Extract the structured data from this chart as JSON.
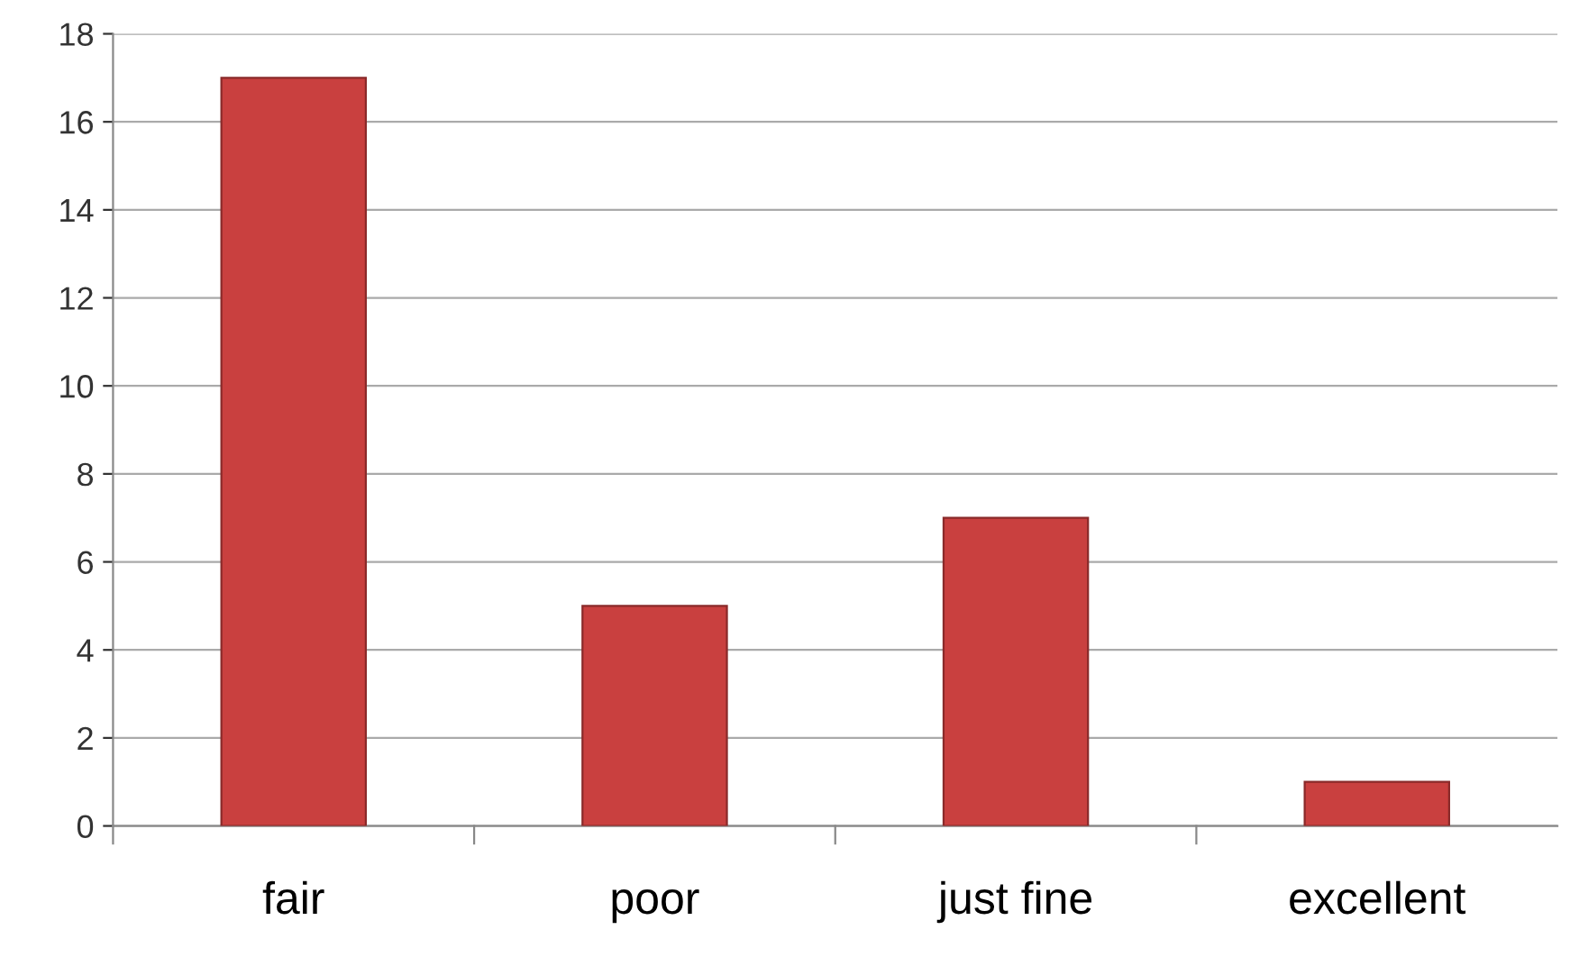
{
  "chart_data": {
    "type": "bar",
    "categories": [
      "fair",
      "poor",
      "just fine",
      "excellent"
    ],
    "values": [
      17,
      5,
      7,
      1
    ],
    "color": "#c9403f",
    "ylim": [
      0,
      18
    ],
    "yticks": [
      0,
      2,
      4,
      6,
      8,
      10,
      12,
      14,
      16,
      18
    ],
    "grid": "y",
    "legend": false
  }
}
